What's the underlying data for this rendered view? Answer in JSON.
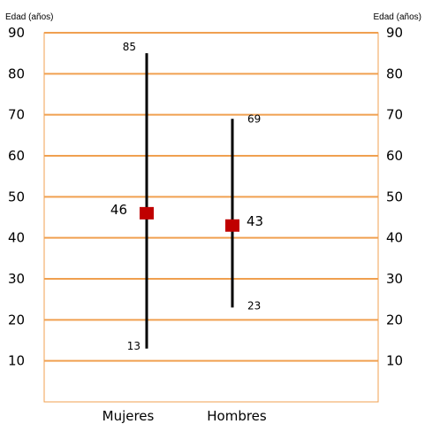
{
  "chart_data": {
    "type": "high-low-mean",
    "title": "",
    "y_axis_left_title": "Edad (años)",
    "y_axis_right_title": "Edad (años)",
    "ylim": [
      0,
      90
    ],
    "yticks": [
      10,
      20,
      30,
      40,
      50,
      60,
      70,
      80,
      90
    ],
    "grid": true,
    "categories": [
      "Mujeres",
      "Hombres"
    ],
    "series": [
      {
        "category": "Mujeres",
        "min": 13,
        "max": 85,
        "mean": 46
      },
      {
        "category": "Hombres",
        "min": 23,
        "max": 69,
        "mean": 43
      }
    ],
    "colors": {
      "grid": "#f0a050",
      "range_line": "#000000",
      "mean_marker": "#c00000",
      "plot_border": "#f0a050"
    }
  }
}
